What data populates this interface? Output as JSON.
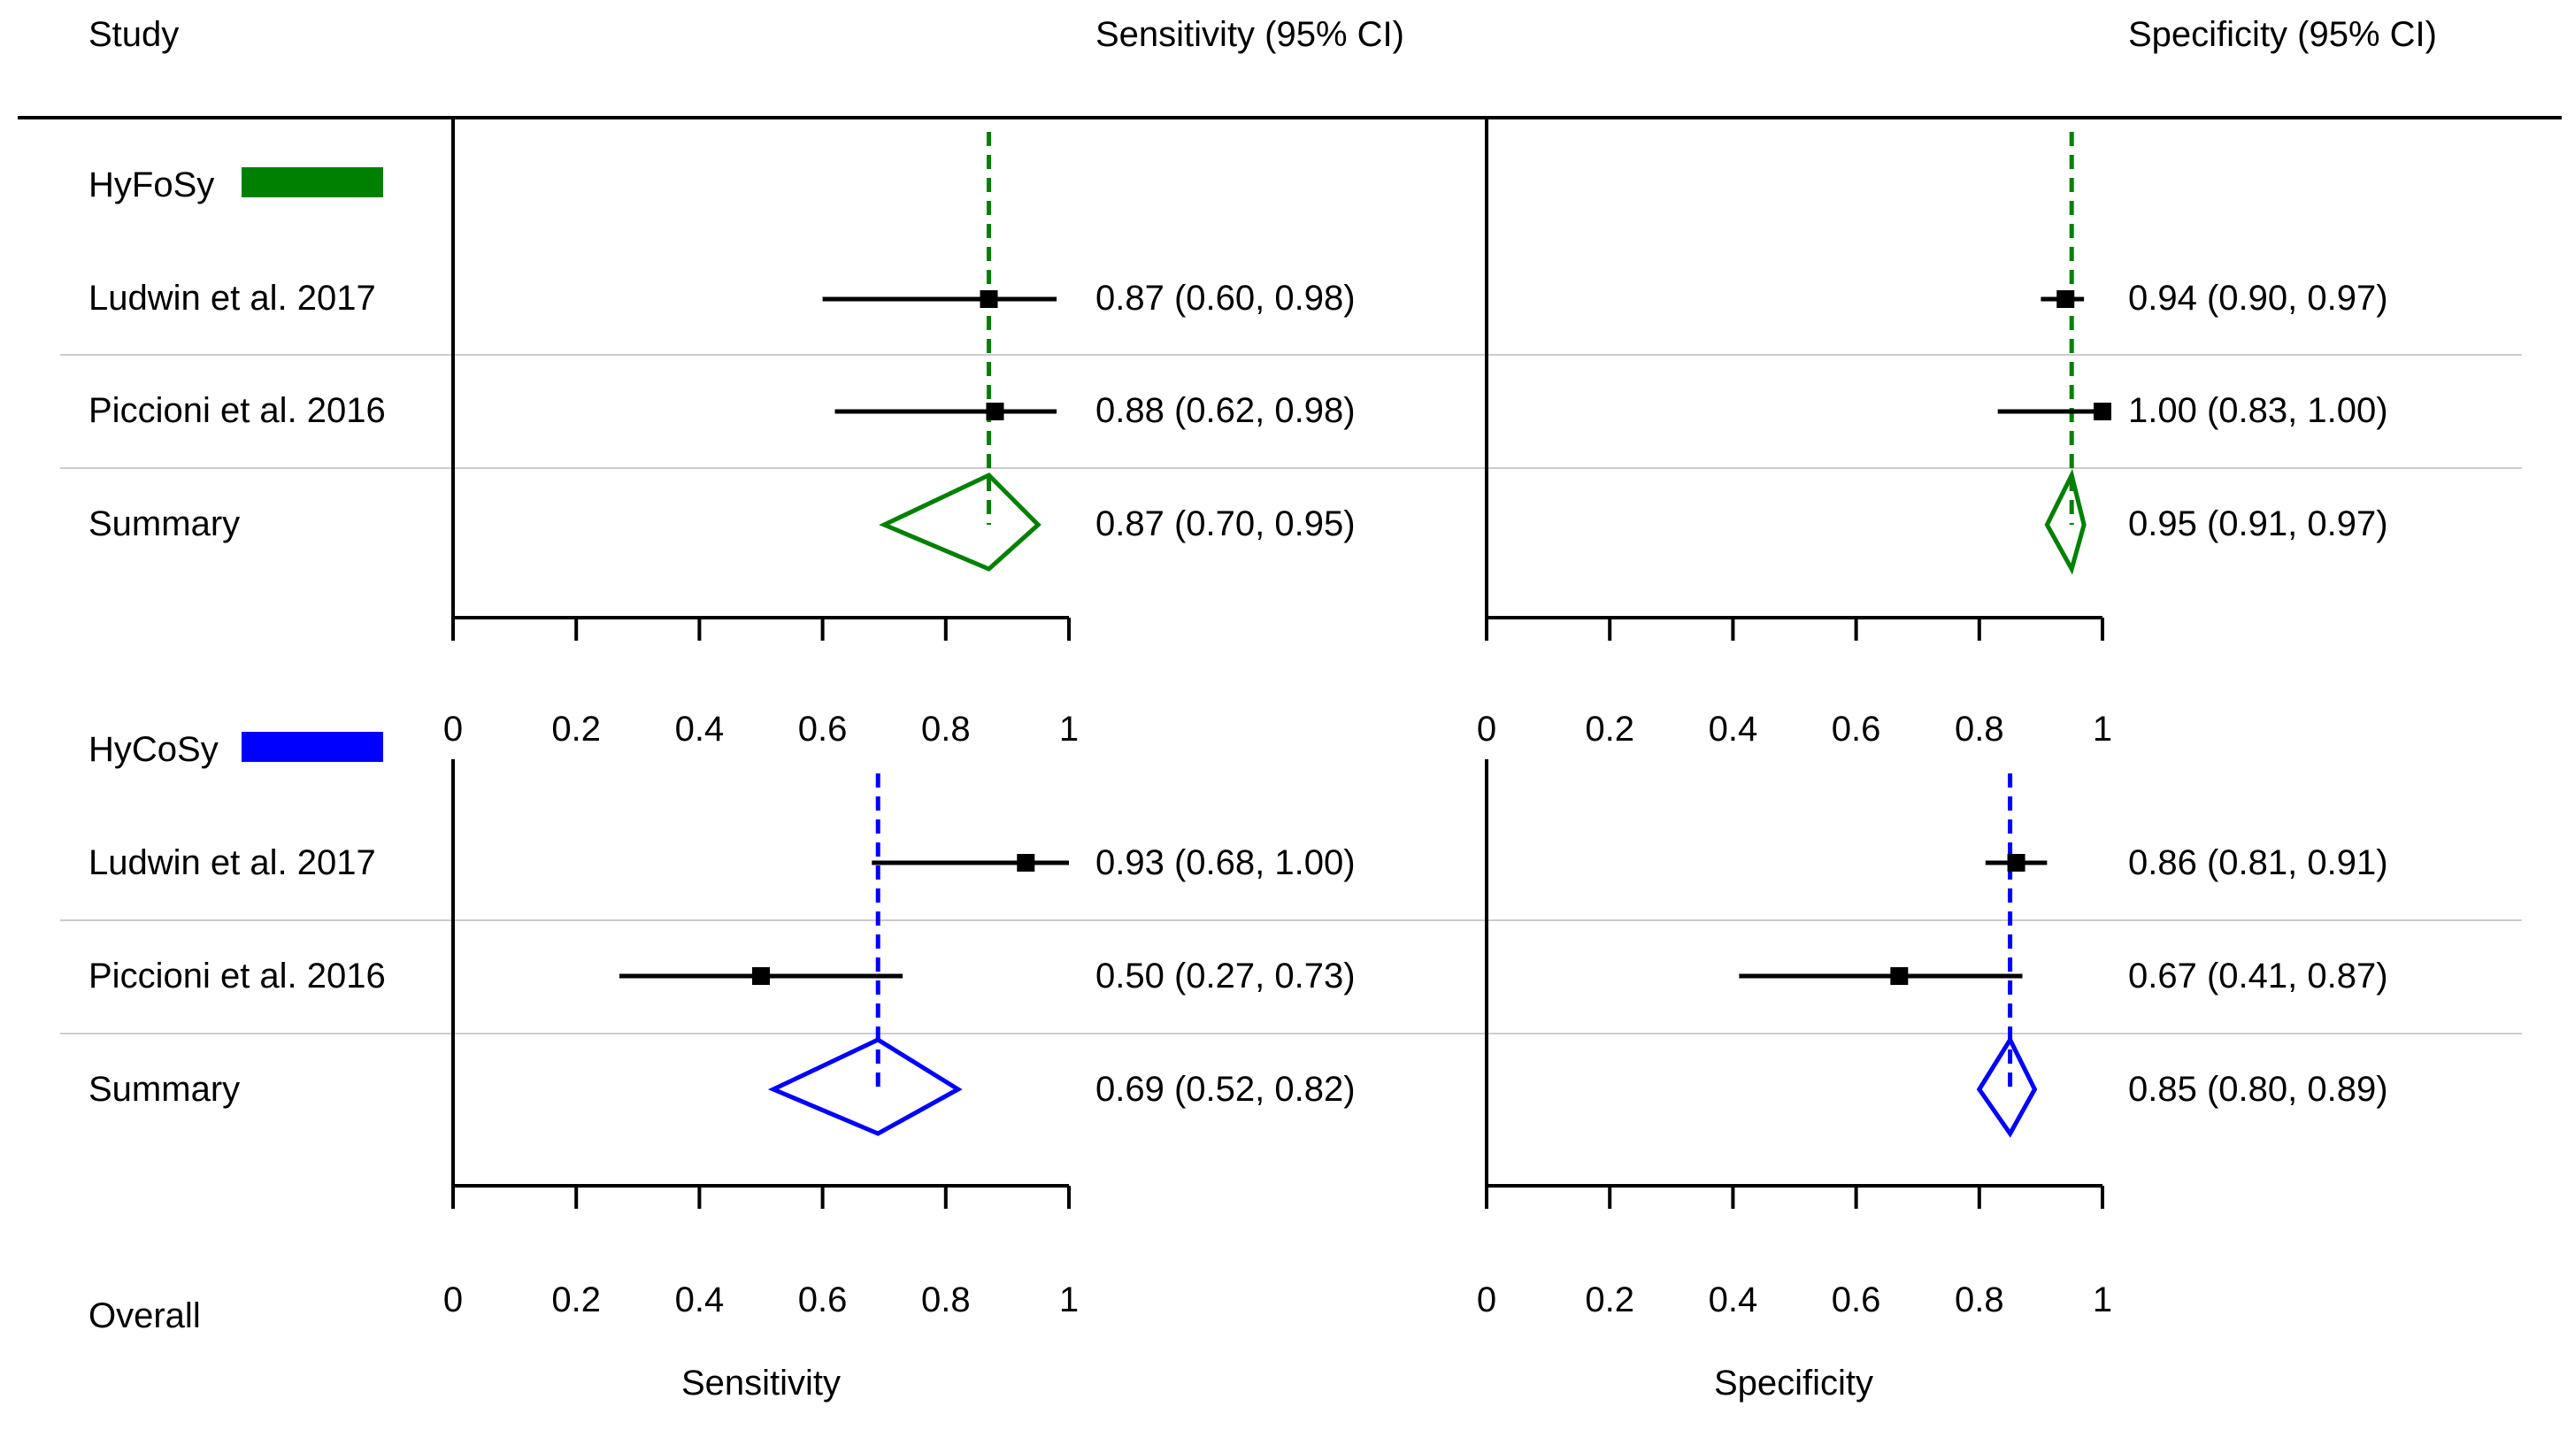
{
  "headers": {
    "study": "Study",
    "sensitivity": "Sensitivity (95% CI)",
    "specificity": "Specificity (95% CI)"
  },
  "groups": [
    {
      "name": "HyFoSy",
      "color": "#008000",
      "studies": [
        {
          "label": "Ludwin et al. 2017",
          "sens": {
            "est": 0.87,
            "lo": 0.6,
            "hi": 0.98,
            "text": "0.87 (0.60, 0.98)"
          },
          "spec": {
            "est": 0.94,
            "lo": 0.9,
            "hi": 0.97,
            "text": "0.94 (0.90, 0.97)"
          }
        },
        {
          "label": "Piccioni et al. 2016",
          "sens": {
            "est": 0.88,
            "lo": 0.62,
            "hi": 0.98,
            "text": "0.88 (0.62, 0.98)"
          },
          "spec": {
            "est": 1.0,
            "lo": 0.83,
            "hi": 1.0,
            "text": "1.00 (0.83, 1.00)"
          }
        }
      ],
      "summary": {
        "label": "Summary",
        "sens": {
          "est": 0.87,
          "lo": 0.7,
          "hi": 0.95,
          "text": "0.87 (0.70, 0.95)"
        },
        "spec": {
          "est": 0.95,
          "lo": 0.91,
          "hi": 0.97,
          "text": "0.95 (0.91, 0.97)"
        }
      }
    },
    {
      "name": "HyCoSy",
      "color": "#0000ff",
      "studies": [
        {
          "label": "Ludwin et al. 2017",
          "sens": {
            "est": 0.93,
            "lo": 0.68,
            "hi": 1.0,
            "text": "0.93 (0.68, 1.00)"
          },
          "spec": {
            "est": 0.86,
            "lo": 0.81,
            "hi": 0.91,
            "text": "0.86 (0.81, 0.91)"
          }
        },
        {
          "label": "Piccioni et al. 2016",
          "sens": {
            "est": 0.5,
            "lo": 0.27,
            "hi": 0.73,
            "text": "0.50 (0.27, 0.73)"
          },
          "spec": {
            "est": 0.67,
            "lo": 0.41,
            "hi": 0.87,
            "text": "0.67 (0.41, 0.87)"
          }
        }
      ],
      "summary": {
        "label": "Summary",
        "sens": {
          "est": 0.69,
          "lo": 0.52,
          "hi": 0.82,
          "text": "0.69 (0.52, 0.82)"
        },
        "spec": {
          "est": 0.85,
          "lo": 0.8,
          "hi": 0.89,
          "text": "0.85 (0.80, 0.89)"
        }
      }
    }
  ],
  "overall_label": "Overall",
  "axis_ticks": [
    "0",
    "0.2",
    "0.4",
    "0.6",
    "0.8",
    "1"
  ],
  "axis_titles": {
    "sensitivity": "Sensitivity",
    "specificity": "Specificity"
  },
  "chart_data": {
    "type": "forest",
    "title": "",
    "xlim": [
      0,
      1
    ],
    "panels": [
      "Sensitivity",
      "Specificity"
    ],
    "groups": [
      "HyFoSy",
      "HyCoSy"
    ],
    "series": [
      {
        "name": "HyFoSy",
        "sensitivity": {
          "studies": [
            0.87,
            0.88
          ],
          "summary": 0.87
        },
        "specificity": {
          "studies": [
            0.94,
            1.0
          ],
          "summary": 0.95
        }
      },
      {
        "name": "HyCoSy",
        "sensitivity": {
          "studies": [
            0.93,
            0.5
          ],
          "summary": 0.69
        },
        "specificity": {
          "studies": [
            0.86,
            0.67
          ],
          "summary": 0.85
        }
      }
    ]
  }
}
